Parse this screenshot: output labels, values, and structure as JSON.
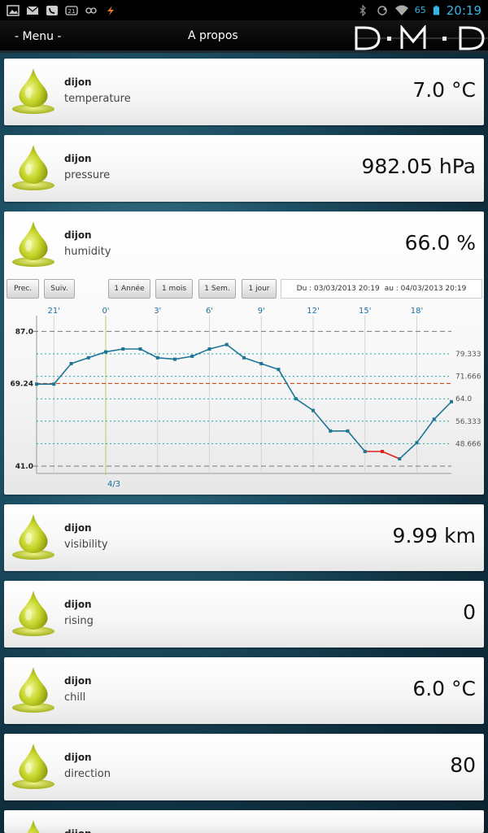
{
  "statusbar": {
    "battery": "65",
    "time": "20:19",
    "left_icons": [
      "picture-icon",
      "mail-icon",
      "phone-app-icon",
      "notification-icon",
      "gamepad-icon",
      "flash-icon"
    ],
    "right_icons": [
      "bluetooth-icon",
      "sync-icon",
      "wifi-icon",
      "battery-icon"
    ]
  },
  "actionbar": {
    "menu_label": "- Menu -",
    "apropos_label": "A propos",
    "logo_alt": "D·M·D"
  },
  "colors": {
    "accent": "#1a7a9a",
    "line": "#1e7595",
    "highlight": "#e02020",
    "avg": "#cc3300",
    "dotted": "#1aa6a6",
    "time_labels": "#1a6fa0",
    "drop": "#c8d630"
  },
  "cards": [
    {
      "place": "dijon",
      "metric": "temperature",
      "value": "7.0 °C"
    },
    {
      "place": "dijon",
      "metric": "pressure",
      "value": "982.05 hPa"
    },
    {
      "place": "dijon",
      "metric": "humidity",
      "value": "66.0 %"
    },
    {
      "place": "dijon",
      "metric": "visibility",
      "value": "9.99 km"
    },
    {
      "place": "dijon",
      "metric": "rising",
      "value": "0"
    },
    {
      "place": "dijon",
      "metric": "chill",
      "value": "6.0 °C"
    },
    {
      "place": "dijon",
      "metric": "direction",
      "value": "80"
    },
    {
      "place": "dijon",
      "metric": "",
      "value": ""
    }
  ],
  "chart_controls": {
    "prev": "Prec.",
    "next": "Suiv.",
    "year": "1 Année",
    "month": "1 mois",
    "week": "1 Sem.",
    "day": "1 jour",
    "range_from": "Du : 03/03/2013 20:19",
    "range_to": "au : 04/03/2013 20:19"
  },
  "chart_data": {
    "type": "line",
    "x_ticks": [
      "21'",
      "0'",
      "3'",
      "6'",
      "9'",
      "12'",
      "15'",
      "18'"
    ],
    "x_tick_hours": [
      -3,
      0,
      3,
      6,
      9,
      12,
      15,
      18
    ],
    "date_label": "4/3",
    "date_label_hour": 0,
    "y_labels_left": [
      "87.0",
      "69.24",
      "41.0"
    ],
    "y_labels_left_values": [
      87.0,
      69.24,
      41.0
    ],
    "y_labels_right": [
      "79.333",
      "71.666",
      "64.0",
      "56.333",
      "48.666"
    ],
    "y_labels_right_values": [
      79.333,
      71.666,
      64.0,
      56.333,
      48.666
    ],
    "ylim": [
      38.5,
      88.5
    ],
    "xlim": [
      -4,
      20
    ],
    "max": 87.0,
    "min": 41.0,
    "average": 69.24,
    "series": [
      {
        "points": [
          [
            -4,
            69
          ],
          [
            -3,
            69
          ],
          [
            -2,
            76
          ],
          [
            -1,
            78
          ],
          [
            0,
            80
          ],
          [
            1,
            81
          ],
          [
            2,
            81
          ],
          [
            3,
            78
          ],
          [
            4,
            77.5
          ],
          [
            5,
            78.5
          ],
          [
            6,
            81
          ],
          [
            7,
            82.5
          ],
          [
            8,
            78
          ],
          [
            9,
            76
          ],
          [
            10,
            74
          ],
          [
            11,
            64
          ],
          [
            12,
            60
          ],
          [
            13,
            53
          ],
          [
            14,
            53
          ],
          [
            15,
            46
          ],
          [
            16,
            46
          ],
          [
            17,
            43.5
          ],
          [
            18,
            49
          ],
          [
            19,
            57
          ],
          [
            20,
            63
          ]
        ],
        "highlight_range": [
          15,
          17
        ]
      }
    ]
  }
}
